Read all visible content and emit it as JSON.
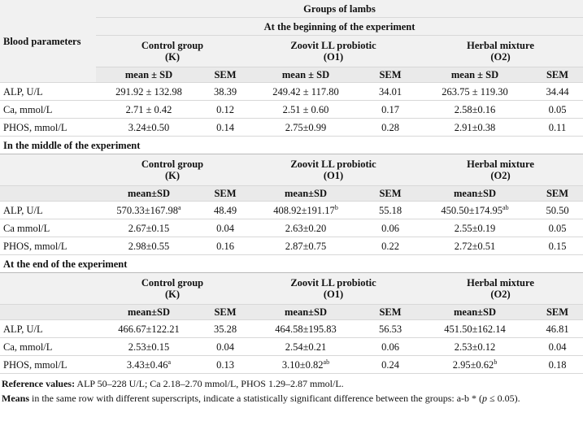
{
  "table": {
    "groups_title": "Groups of lambs",
    "blood_title": "Blood parameters",
    "sections": [
      {
        "title": "At the beginning of the experiment",
        "groups": [
          [
            "Control group",
            "(K)"
          ],
          [
            "Zoovit LL probiotic",
            "(O1)"
          ],
          [
            "Herbal mixture",
            "(O2)"
          ]
        ],
        "cols": [
          "mean ± SD",
          "SEM",
          "mean ± SD",
          "SEM",
          "mean ± SD",
          "SEM"
        ],
        "rows": [
          [
            "ALP, U/L",
            "291.92 ± 132.98",
            "38.39",
            "249.42 ± 117.80",
            "34.01",
            "263.75 ± 119.30",
            "34.44"
          ],
          [
            "Ca, mmol/L",
            "2.71 ± 0.42",
            "0.12",
            "2.51 ± 0.60",
            "0.17",
            "2.58±0.16",
            "0.05"
          ],
          [
            "PHOS, mmol/L",
            "3.24±0.50",
            "0.14",
            "2.75±0.99",
            "0.28",
            "2.91±0.38",
            "0.11"
          ]
        ]
      },
      {
        "title": "In the middle of the experiment",
        "groups": [
          [
            "Control group",
            "(K)"
          ],
          [
            "Zoovit LL probiotic",
            "(O1)"
          ],
          [
            "Herbal mixture",
            "(O2)"
          ]
        ],
        "cols": [
          "mean±SD",
          "SEM",
          "mean±SD",
          "SEM",
          "mean±SD",
          "SEM"
        ],
        "rows": [
          [
            "ALP, U/L",
            {
              "text": "570.33±167.98",
              "sup": "a"
            },
            "48.49",
            {
              "text": "408.92±191.17",
              "sup": "b"
            },
            "55.18",
            {
              "text": "450.50±174.95",
              "sup": "ab"
            },
            "50.50"
          ],
          [
            "Ca mmol/L",
            "2.67±0.15",
            "0.04",
            "2.63±0.20",
            "0.06",
            "2.55±0.19",
            "0.05"
          ],
          [
            "PHOS, mmol/L",
            "2.98±0.55",
            "0.16",
            "2.87±0.75",
            "0.22",
            "2.72±0.51",
            "0.15"
          ]
        ]
      },
      {
        "title": "At the end of the experiment",
        "groups": [
          [
            "Control group",
            "(K)"
          ],
          [
            "Zoovit LL probiotic",
            "(O1)"
          ],
          [
            "Herbal mixture",
            "(O2)"
          ]
        ],
        "cols": [
          "mean±SD",
          "SEM",
          "mean±SD",
          "SEM",
          "mean±SD",
          "SEM"
        ],
        "rows": [
          [
            "ALP, U/L",
            "466.67±122.21",
            "35.28",
            "464.58±195.83",
            "56.53",
            "451.50±162.14",
            "46.81"
          ],
          [
            "Ca, mmol/L",
            "2.53±0.15",
            "0.04",
            "2.54±0.21",
            "0.06",
            "2.53±0.12",
            "0.04"
          ],
          [
            "PHOS, mmol/L",
            {
              "text": "3.43±0.46",
              "sup": "a"
            },
            "0.13",
            {
              "text": "3.10±0.82",
              "sup": "ab"
            },
            "0.24",
            {
              "text": "2.95±0.62",
              "sup": "b"
            },
            "0.18"
          ]
        ]
      }
    ]
  },
  "footnotes": [
    [
      {
        "text": "Reference values:",
        "style": "bold"
      },
      {
        "text": " ALP 50–228 U/L; Ca 2.18–2.70 mmol/L, PHOS 1.29–2.87 mmol/L."
      }
    ],
    [
      {
        "text": "Means",
        "style": "bold"
      },
      {
        "text": " in the same row with different superscripts, indicate a statistically significant difference between the groups: a-b * ("
      },
      {
        "text": "p",
        "style": "italic"
      },
      {
        "text": " ≤ 0.05)."
      }
    ]
  ]
}
